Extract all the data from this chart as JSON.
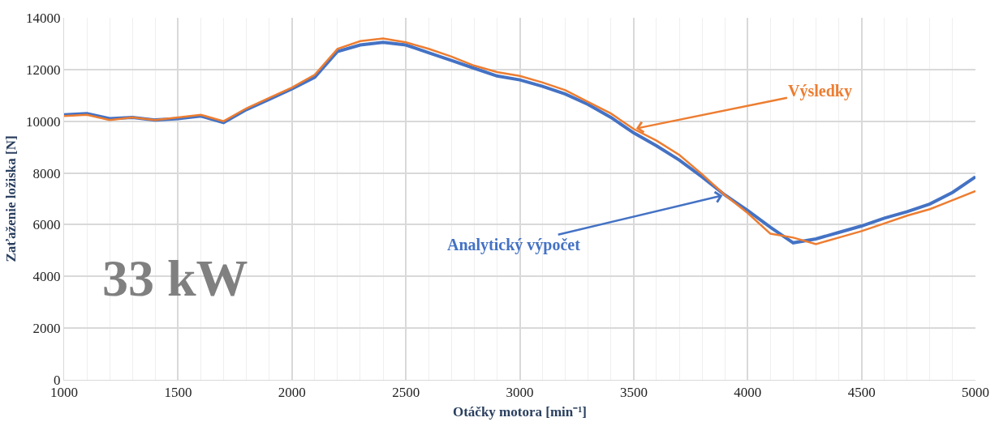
{
  "chart_data": {
    "type": "line",
    "xlabel": "Otáčky motora [min⁻¹]",
    "ylabel": "Zaťaženie ložiska [N]",
    "x": [
      1000,
      1100,
      1200,
      1300,
      1400,
      1500,
      1600,
      1700,
      1800,
      1900,
      2000,
      2100,
      2200,
      2300,
      2400,
      2500,
      2600,
      2700,
      2800,
      2900,
      3000,
      3100,
      3200,
      3300,
      3400,
      3500,
      3600,
      3700,
      3800,
      3900,
      4000,
      4100,
      4200,
      4300,
      4400,
      4500,
      4600,
      4700,
      4800,
      4900,
      5000
    ],
    "series": [
      {
        "name": "Analytický výpočet",
        "color": "#4472c4",
        "values": [
          10250,
          10300,
          10100,
          10150,
          10050,
          10100,
          10200,
          9950,
          10450,
          10850,
          11250,
          11700,
          12700,
          12950,
          13050,
          12950,
          12650,
          12350,
          12050,
          11750,
          11600,
          11350,
          11050,
          10650,
          10150,
          9550,
          9050,
          8500,
          7850,
          7150,
          6550,
          5900,
          5300,
          5450,
          5700,
          5950,
          6250,
          6500,
          6800,
          7250,
          7850
        ]
      },
      {
        "name": "Výsledky",
        "color": "#ed7d31",
        "values": [
          10200,
          10250,
          10050,
          10150,
          10050,
          10150,
          10250,
          10000,
          10500,
          10900,
          11300,
          11800,
          12800,
          13100,
          13200,
          13050,
          12800,
          12500,
          12150,
          11900,
          11750,
          11500,
          11200,
          10750,
          10300,
          9700,
          9250,
          8700,
          7950,
          7150,
          6450,
          5650,
          5500,
          5250,
          5500,
          5750,
          6050,
          6350,
          6600,
          6950,
          7300
        ]
      }
    ],
    "xlim": [
      1000,
      5000
    ],
    "xticks": [
      1000,
      1500,
      2000,
      2500,
      3000,
      3500,
      4000,
      4500,
      5000
    ],
    "ylim": [
      0,
      14000
    ],
    "yticks": [
      0,
      2000,
      4000,
      6000,
      8000,
      10000,
      12000,
      14000
    ],
    "grid": true,
    "legend": false,
    "marker": "none",
    "line_style": "solid",
    "annotations": [
      "33 kW"
    ]
  }
}
